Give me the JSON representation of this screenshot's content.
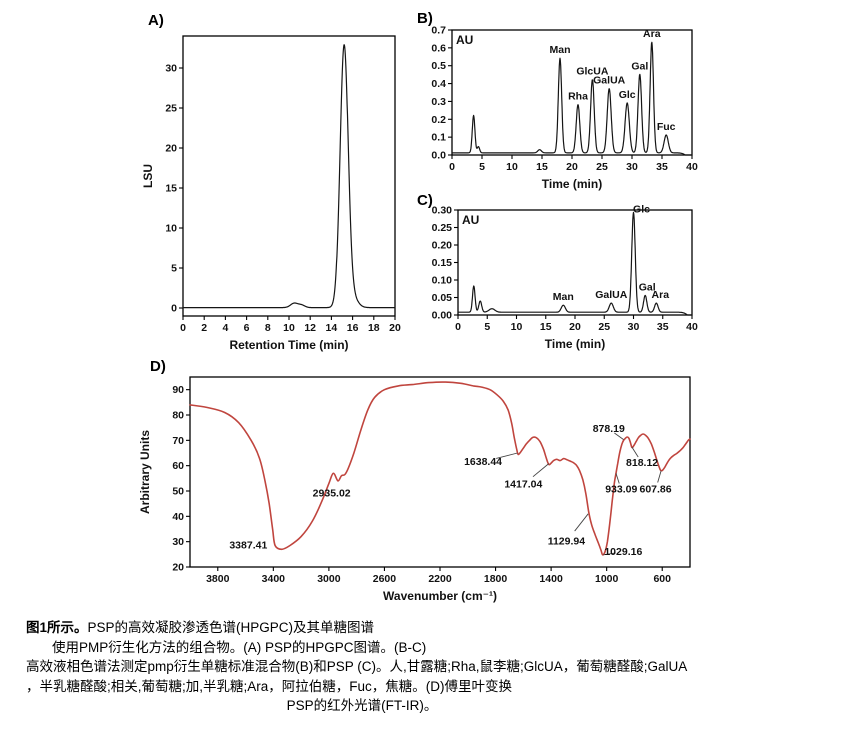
{
  "figure": {
    "caption": {
      "line1_bold": "图1所示。",
      "line1_rest": "PSP的高效凝胶渗透色谱(HPGPC)及其单糖图谱",
      "line2": "使用PMP衍生化方法的组合物。(A) PSP的HPGPC图谱。(B-C)",
      "line3": "高效液相色谱法测定pmp衍生单糖标准混合物(B)和PSP (C)。人,甘露糖;Rha,鼠李糖;GlcUA，葡萄糖醛酸;GalUA",
      "line4": "，半乳糖醛酸;相关,葡萄糖;加,半乳糖;Ara，阿拉伯糖，Fuc，焦糖。(D)傅里叶变换",
      "line5": "PSP的红外光谱(FT-IR)。"
    }
  },
  "chart_data": [
    {
      "id": "chart-a",
      "type": "line",
      "title": "A)",
      "xlabel": "Retention Time (min)",
      "ylabel": "LSU",
      "xlim": [
        0,
        20
      ],
      "ylim": [
        -1,
        34
      ],
      "xticks": [
        0,
        2,
        4,
        6,
        8,
        10,
        12,
        14,
        16,
        18,
        20
      ],
      "yticks": [
        0,
        5,
        10,
        15,
        20,
        25,
        30
      ],
      "line_color": "#151515",
      "baseline": 0.05,
      "peaks": [
        {
          "c": 10.5,
          "h": 0.55,
          "w": 0.35
        },
        {
          "c": 11.2,
          "h": 0.3,
          "w": 0.3
        },
        {
          "c": 15.2,
          "h": 32.3,
          "w": 0.38
        },
        {
          "c": 15.9,
          "h": 1.5,
          "w": 0.5
        }
      ]
    },
    {
      "id": "chart-b",
      "type": "line",
      "title": "B)",
      "xlabel": "Time (min)",
      "inner_label": "AU",
      "xlim": [
        0,
        40
      ],
      "ylim": [
        0,
        0.7
      ],
      "xticks": [
        0,
        5,
        10,
        15,
        20,
        25,
        30,
        35,
        40
      ],
      "yticks": [
        0,
        0.1,
        0.2,
        0.3,
        0.4,
        0.5,
        0.6,
        0.7
      ],
      "ytick_labels": [
        "0.0",
        "0.1",
        "0.2",
        "0.3",
        "0.4",
        "0.5",
        "0.6",
        "0.7"
      ],
      "line_color": "#151515",
      "baseline": 0.012,
      "peaks": [
        {
          "c": 3.6,
          "h": 0.21,
          "w": 0.22
        },
        {
          "c": 4.4,
          "h": 0.035,
          "w": 0.2
        },
        {
          "c": 14.6,
          "h": 0.018,
          "w": 0.3
        },
        {
          "c": 18.0,
          "h": 0.53,
          "w": 0.28,
          "label": "Man"
        },
        {
          "c": 21.0,
          "h": 0.27,
          "w": 0.3,
          "label": "Rha"
        },
        {
          "c": 23.4,
          "h": 0.41,
          "w": 0.3,
          "label": "GlcUA"
        },
        {
          "c": 26.2,
          "h": 0.36,
          "w": 0.33,
          "label": "GalUA"
        },
        {
          "c": 29.2,
          "h": 0.28,
          "w": 0.35,
          "label": "Glc"
        },
        {
          "c": 31.3,
          "h": 0.44,
          "w": 0.3,
          "label": "Gal"
        },
        {
          "c": 33.3,
          "h": 0.62,
          "w": 0.28,
          "label": "Ara"
        },
        {
          "c": 35.7,
          "h": 0.1,
          "w": 0.35,
          "label": "Fuc"
        },
        {
          "c": 40.5,
          "h": -0.06,
          "w": 0.9
        }
      ]
    },
    {
      "id": "chart-c",
      "type": "line",
      "title": "C)",
      "xlabel": "Time (min)",
      "inner_label": "AU",
      "xlim": [
        0,
        40
      ],
      "ylim": [
        0,
        0.3
      ],
      "xticks": [
        0,
        5,
        10,
        15,
        20,
        25,
        30,
        35,
        40
      ],
      "yticks": [
        0,
        0.05,
        0.1,
        0.15,
        0.2,
        0.25,
        0.3
      ],
      "ytick_labels": [
        "0.00",
        "0.05",
        "0.10",
        "0.15",
        "0.20",
        "0.25",
        "0.30"
      ],
      "line_color": "#151515",
      "baseline": 0.008,
      "peaks": [
        {
          "c": 2.7,
          "h": 0.075,
          "w": 0.22
        },
        {
          "c": 3.8,
          "h": 0.032,
          "w": 0.25
        },
        {
          "c": 5.8,
          "h": 0.01,
          "w": 0.5
        },
        {
          "c": 18.0,
          "h": 0.02,
          "w": 0.35,
          "label": "Man"
        },
        {
          "c": 26.2,
          "h": 0.026,
          "w": 0.35,
          "label": "GalUA"
        },
        {
          "c": 30.0,
          "h": 0.285,
          "w": 0.3,
          "label": "Glc",
          "ldx": 8,
          "ldy": 0
        },
        {
          "c": 32.0,
          "h": 0.048,
          "w": 0.28,
          "label": "Gal",
          "ldx": 2
        },
        {
          "c": 33.9,
          "h": 0.026,
          "w": 0.3,
          "label": "Ara",
          "ldx": 4
        },
        {
          "c": 40.3,
          "h": -0.02,
          "w": 0.8
        }
      ]
    },
    {
      "id": "chart-d",
      "type": "ir",
      "title": "D)",
      "xlabel": "Wavenumber (cm⁻¹)",
      "ylabel": "Arbitrary Units",
      "xlim": [
        4000,
        400
      ],
      "ylim": [
        20,
        95
      ],
      "xticks": [
        3800,
        3400,
        3000,
        2600,
        2200,
        1800,
        1400,
        1000,
        600
      ],
      "yticks": [
        20,
        30,
        40,
        50,
        60,
        70,
        80,
        90
      ],
      "line_color": "#c0453e",
      "points": [
        [
          4000,
          84
        ],
        [
          3880,
          83
        ],
        [
          3750,
          81
        ],
        [
          3650,
          77
        ],
        [
          3560,
          70
        ],
        [
          3500,
          63
        ],
        [
          3460,
          54
        ],
        [
          3430,
          45
        ],
        [
          3405,
          35
        ],
        [
          3387,
          28.5
        ],
        [
          3340,
          27
        ],
        [
          3280,
          28.5
        ],
        [
          3200,
          32
        ],
        [
          3120,
          38
        ],
        [
          3050,
          46
        ],
        [
          3000,
          53
        ],
        [
          2968,
          57
        ],
        [
          2935,
          54
        ],
        [
          2910,
          56
        ],
        [
          2885,
          56.5
        ],
        [
          2860,
          59
        ],
        [
          2820,
          65
        ],
        [
          2770,
          74
        ],
        [
          2720,
          82
        ],
        [
          2670,
          87
        ],
        [
          2600,
          90
        ],
        [
          2500,
          91.5
        ],
        [
          2400,
          92
        ],
        [
          2280,
          92.8
        ],
        [
          2160,
          93
        ],
        [
          2050,
          92.5
        ],
        [
          1960,
          91.5
        ],
        [
          1900,
          91
        ],
        [
          1840,
          90
        ],
        [
          1790,
          88
        ],
        [
          1745,
          85.5
        ],
        [
          1710,
          82
        ],
        [
          1685,
          77
        ],
        [
          1665,
          71
        ],
        [
          1648,
          66.5
        ],
        [
          1638,
          64.5
        ],
        [
          1625,
          65
        ],
        [
          1605,
          66.5
        ],
        [
          1580,
          68.5
        ],
        [
          1555,
          70
        ],
        [
          1530,
          71.2
        ],
        [
          1505,
          71
        ],
        [
          1480,
          69.5
        ],
        [
          1455,
          66.5
        ],
        [
          1435,
          63
        ],
        [
          1417,
          60.5
        ],
        [
          1400,
          61
        ],
        [
          1382,
          62
        ],
        [
          1360,
          62.5
        ],
        [
          1335,
          62
        ],
        [
          1310,
          62.8
        ],
        [
          1285,
          62.3
        ],
        [
          1262,
          61.8
        ],
        [
          1240,
          61.2
        ],
        [
          1215,
          60
        ],
        [
          1195,
          58
        ],
        [
          1172,
          54.5
        ],
        [
          1150,
          49
        ],
        [
          1130,
          42
        ],
        [
          1110,
          37
        ],
        [
          1085,
          33
        ],
        [
          1060,
          29.5
        ],
        [
          1040,
          26.5
        ],
        [
          1029,
          24.8
        ],
        [
          1012,
          26
        ],
        [
          995,
          30
        ],
        [
          978,
          37
        ],
        [
          960,
          46
        ],
        [
          945,
          53
        ],
        [
          933,
          57
        ],
        [
          920,
          61
        ],
        [
          905,
          65.5
        ],
        [
          890,
          68.5
        ],
        [
          878,
          70
        ],
        [
          865,
          70.8
        ],
        [
          852,
          71.3
        ],
        [
          840,
          70.8
        ],
        [
          830,
          69.3
        ],
        [
          818,
          67.2
        ],
        [
          806,
          67.8
        ],
        [
          790,
          69.3
        ],
        [
          772,
          71
        ],
        [
          755,
          72
        ],
        [
          738,
          72.5
        ],
        [
          720,
          72
        ],
        [
          700,
          70.8
        ],
        [
          678,
          68.5
        ],
        [
          655,
          65
        ],
        [
          632,
          61
        ],
        [
          615,
          58.5
        ],
        [
          607,
          58
        ],
        [
          596,
          58.3
        ],
        [
          580,
          59.5
        ],
        [
          560,
          61.5
        ],
        [
          540,
          63
        ],
        [
          518,
          64
        ],
        [
          496,
          64.8
        ],
        [
          474,
          65.8
        ],
        [
          452,
          67
        ],
        [
          432,
          68.5
        ],
        [
          412,
          70
        ],
        [
          400,
          70.5
        ]
      ],
      "annotations": [
        {
          "text": "3387.41",
          "ax": 3387,
          "ay": 27.8,
          "lx": 3580,
          "ly": 28.5,
          "leader": false
        },
        {
          "text": "2935.02",
          "ax": 2935,
          "ay": 54,
          "lx": 2980,
          "ly": 49,
          "leader": false
        },
        {
          "text": "1638.44",
          "ax": 1642,
          "ay": 65,
          "lx": 1890,
          "ly": 61.5,
          "leader": true
        },
        {
          "text": "1417.04",
          "ax": 1417,
          "ay": 60.8,
          "lx": 1600,
          "ly": 52.5,
          "leader": true
        },
        {
          "text": "1129.94",
          "ax": 1133,
          "ay": 41,
          "lx": 1290,
          "ly": 30,
          "leader": true
        },
        {
          "text": "1029.16",
          "ax": 1024,
          "ay": 24.8,
          "lx": 880,
          "ly": 26,
          "leader": true
        },
        {
          "text": "878.19",
          "ax": 878,
          "ay": 70.3,
          "lx": 985,
          "ly": 74.5,
          "leader": true
        },
        {
          "text": "933.09",
          "ax": 933,
          "ay": 57,
          "lx": 895,
          "ly": 50.5,
          "leader": true
        },
        {
          "text": "818.12",
          "ax": 818,
          "ay": 67.3,
          "lx": 745,
          "ly": 61,
          "leader": true
        },
        {
          "text": "607.86",
          "ax": 608,
          "ay": 58,
          "lx": 648,
          "ly": 50.5,
          "leader": true
        }
      ]
    }
  ]
}
